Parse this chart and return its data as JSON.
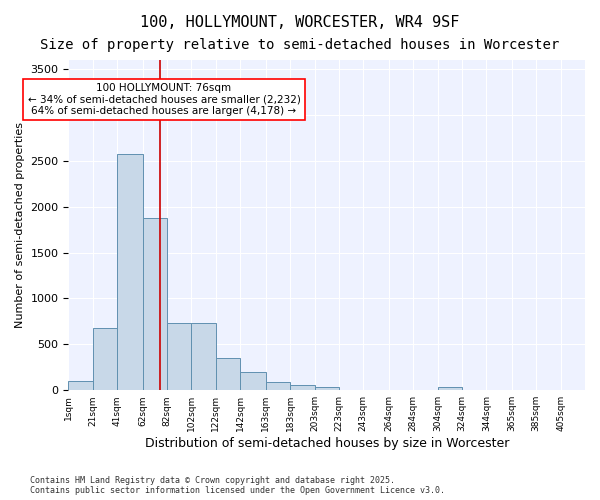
{
  "title1": "100, HOLLYMOUNT, WORCESTER, WR4 9SF",
  "title2": "Size of property relative to semi-detached houses in Worcester",
  "xlabel": "Distribution of semi-detached houses by size in Worcester",
  "ylabel": "Number of semi-detached properties",
  "bar_color": "#c8d8e8",
  "bar_edge_color": "#6090b0",
  "background_color": "#eef2ff",
  "vline_color": "#cc0000",
  "vline_position": 76,
  "annotation_text": "100 HOLLYMOUNT: 76sqm\n← 34% of semi-detached houses are smaller (2,232)\n64% of semi-detached houses are larger (4,178) →",
  "categories": [
    "1sqm",
    "21sqm",
    "41sqm",
    "62sqm",
    "82sqm",
    "102sqm",
    "122sqm",
    "142sqm",
    "163sqm",
    "183sqm",
    "203sqm",
    "223sqm",
    "243sqm",
    "264sqm",
    "284sqm",
    "304sqm",
    "324sqm",
    "344sqm",
    "365sqm",
    "385sqm",
    "405sqm"
  ],
  "bin_edges": [
    1,
    21,
    41,
    62,
    82,
    102,
    122,
    142,
    163,
    183,
    203,
    223,
    243,
    264,
    284,
    304,
    324,
    344,
    365,
    385,
    405
  ],
  "bin_widths": [
    20,
    20,
    21,
    20,
    20,
    20,
    20,
    21,
    20,
    20,
    20,
    20,
    21,
    20,
    20,
    20,
    20,
    21,
    20,
    20,
    20
  ],
  "values": [
    100,
    680,
    2580,
    1880,
    730,
    730,
    350,
    200,
    90,
    60,
    30,
    5,
    5,
    0,
    0,
    40,
    0,
    0,
    0,
    0,
    0
  ],
  "ylim": [
    0,
    3600
  ],
  "yticks": [
    0,
    500,
    1000,
    1500,
    2000,
    2500,
    3000,
    3500
  ],
  "footnote": "Contains HM Land Registry data © Crown copyright and database right 2025.\nContains public sector information licensed under the Open Government Licence v3.0.",
  "title_fontsize": 11,
  "subtitle_fontsize": 10
}
